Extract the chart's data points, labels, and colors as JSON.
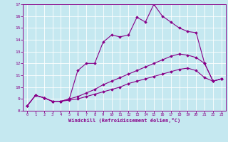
{
  "xlabel": "Windchill (Refroidissement éolien,°C)",
  "xlim": [
    -0.5,
    23.5
  ],
  "ylim": [
    8,
    17
  ],
  "xticks": [
    0,
    1,
    2,
    3,
    4,
    5,
    6,
    7,
    8,
    9,
    10,
    11,
    12,
    13,
    14,
    15,
    16,
    17,
    18,
    19,
    20,
    21,
    22,
    23
  ],
  "yticks": [
    8,
    9,
    10,
    11,
    12,
    13,
    14,
    15,
    16,
    17
  ],
  "bg_color": "#c5e8f0",
  "line_color": "#880088",
  "grid_color": "#ffffff",
  "line1_x": [
    0,
    1,
    2,
    3,
    4,
    5,
    6,
    7,
    8,
    9,
    10,
    11,
    12,
    13,
    14,
    15,
    16,
    17,
    18,
    19,
    20,
    21,
    22,
    23
  ],
  "line1_y": [
    8.4,
    9.3,
    9.1,
    8.8,
    8.8,
    9.0,
    11.4,
    12.0,
    12.0,
    13.8,
    14.4,
    14.25,
    14.4,
    15.9,
    15.5,
    17.0,
    16.0,
    15.5,
    15.0,
    14.7,
    14.6,
    12.0,
    10.5,
    10.7
  ],
  "line2_x": [
    0,
    1,
    2,
    3,
    4,
    5,
    6,
    7,
    8,
    9,
    10,
    11,
    12,
    13,
    14,
    15,
    16,
    17,
    18,
    19,
    20,
    21,
    22,
    23
  ],
  "line2_y": [
    8.4,
    9.3,
    9.1,
    8.8,
    8.8,
    9.0,
    9.2,
    9.5,
    9.8,
    10.2,
    10.5,
    10.8,
    11.1,
    11.4,
    11.7,
    12.0,
    12.3,
    12.6,
    12.8,
    12.7,
    12.5,
    12.0,
    10.5,
    10.7
  ],
  "line3_x": [
    0,
    1,
    2,
    3,
    4,
    5,
    6,
    7,
    8,
    9,
    10,
    11,
    12,
    13,
    14,
    15,
    16,
    17,
    18,
    19,
    20,
    21,
    22,
    23
  ],
  "line3_y": [
    8.4,
    9.3,
    9.1,
    8.8,
    8.8,
    8.9,
    9.0,
    9.2,
    9.4,
    9.6,
    9.8,
    10.0,
    10.3,
    10.5,
    10.7,
    10.9,
    11.1,
    11.3,
    11.5,
    11.6,
    11.4,
    10.8,
    10.5,
    10.7
  ]
}
